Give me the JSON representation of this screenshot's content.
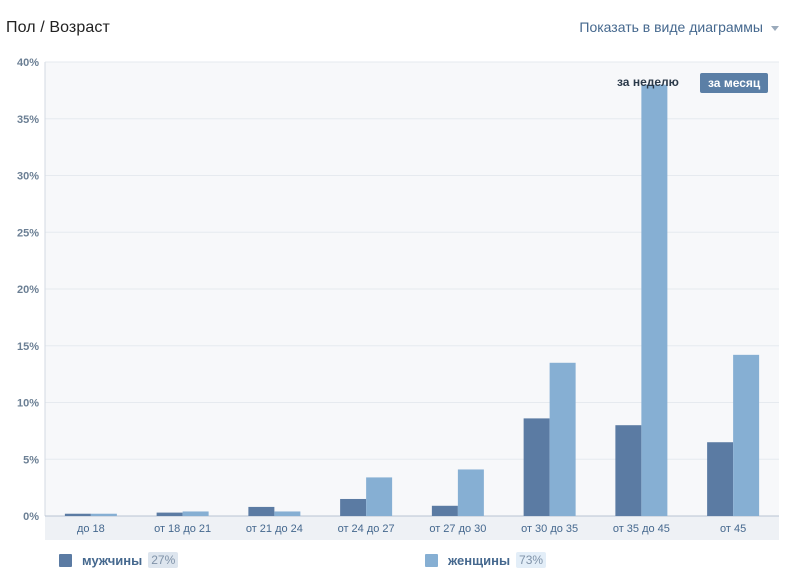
{
  "header": {
    "title": "Пол / Возраст",
    "view_toggle": "Показать в виде диаграммы"
  },
  "period": {
    "week": "за неделю",
    "month": "за месяц",
    "selected": "month"
  },
  "legend": [
    {
      "name": "мужчины",
      "pct": "27%",
      "color": "#5b7ba3",
      "pct_bg": "#dde5ee"
    },
    {
      "name": "женщины",
      "pct": "73%",
      "color": "#86afd3",
      "pct_bg": "#e3eef8"
    }
  ],
  "chart_data": {
    "type": "bar",
    "categories": [
      "до 18",
      "от 18 до 21",
      "от 21 до 24",
      "от 24 до 27",
      "от 27 до 30",
      "от 30 до 35",
      "от 35 до 45",
      "от 45"
    ],
    "series": [
      {
        "name": "мужчины",
        "values": [
          0.2,
          0.3,
          0.8,
          1.5,
          0.9,
          8.6,
          8.0,
          6.5
        ],
        "color": "#5b7ba3"
      },
      {
        "name": "женщины",
        "values": [
          0.2,
          0.4,
          0.4,
          3.4,
          4.1,
          13.5,
          38.0,
          14.2
        ],
        "color": "#86afd3"
      }
    ],
    "yticks": [
      "0%",
      "5%",
      "10%",
      "15%",
      "20%",
      "25%",
      "30%",
      "35%",
      "40%"
    ],
    "ylim": [
      0,
      40
    ],
    "grid": true,
    "plot_bg": "#f7f8fa",
    "axis_color": "#d3dae3",
    "tick_color": "#6b7f94"
  }
}
